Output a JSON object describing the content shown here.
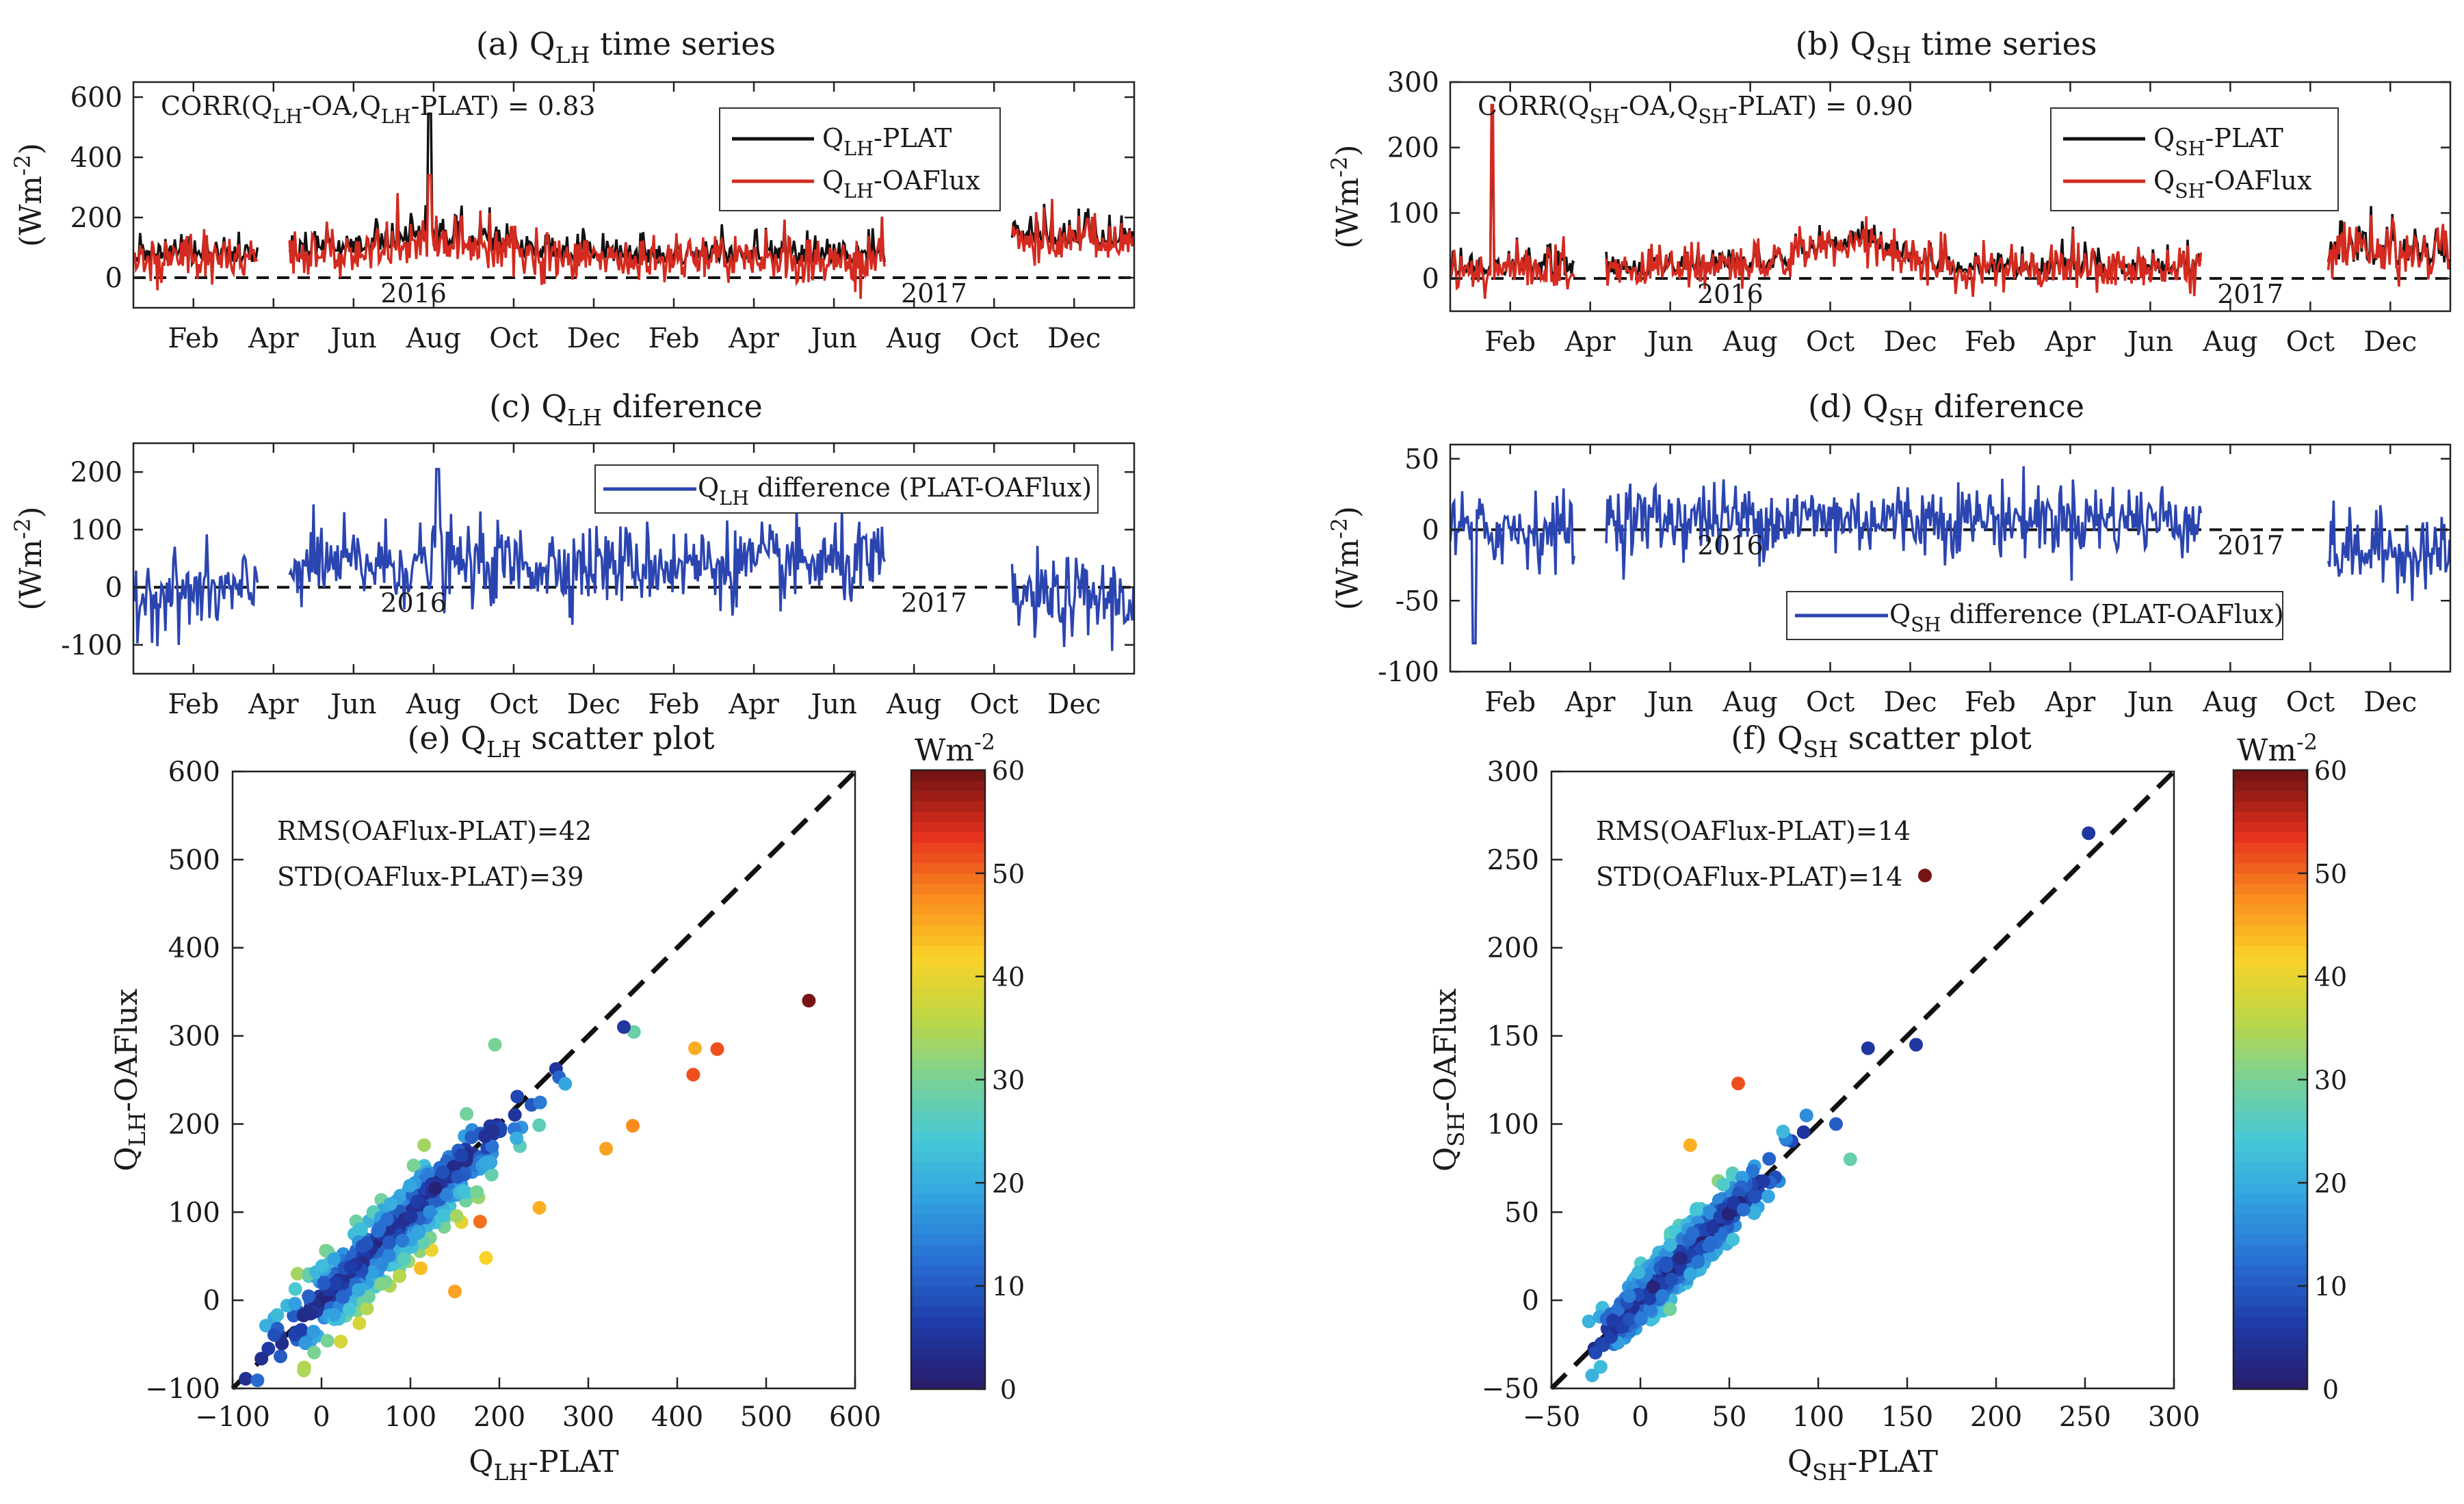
{
  "chart_data": [
    {
      "id": "a",
      "type": "line",
      "title": "(a) Q<sub>LH</sub> time series",
      "title_main": "(a) Q",
      "title_sub": "LH",
      "title_rest": " time series",
      "ylabel": "(Wm^-2)",
      "ylim": [
        -100,
        650
      ],
      "yticks": [
        0,
        200,
        400,
        600
      ],
      "xticks": [
        "Feb",
        "Apr",
        "Jun",
        "Aug",
        "Oct",
        "Dec",
        "Feb",
        "Apr",
        "Jun",
        "Aug",
        "Oct",
        "Dec"
      ],
      "year_labels": [
        "2016",
        "2017"
      ],
      "annotation": "CORR(Q_LH-OA,Q_LH-PLAT) = 0.83",
      "series": [
        {
          "name": "Q_LH-PLAT",
          "color": "#111111"
        },
        {
          "name": "Q_LH-OAFlux",
          "color": "#d42a1f"
        }
      ]
    },
    {
      "id": "b",
      "type": "line",
      "title_main": "(b) Q",
      "title_sub": "SH",
      "title_rest": " time series",
      "ylabel": "(Wm^-2)",
      "ylim": [
        -50,
        300
      ],
      "yticks": [
        0,
        100,
        200,
        300
      ],
      "xticks": [
        "Feb",
        "Apr",
        "Jun",
        "Aug",
        "Oct",
        "Dec",
        "Feb",
        "Apr",
        "Jun",
        "Aug",
        "Oct",
        "Dec"
      ],
      "year_labels": [
        "2016",
        "2017"
      ],
      "annotation": "CORR(Q_SH-OA,Q_SH-PLAT) = 0.90",
      "series": [
        {
          "name": "Q_SH-PLAT",
          "color": "#111111"
        },
        {
          "name": "Q_SH-OAFlux",
          "color": "#d42a1f"
        }
      ]
    },
    {
      "id": "c",
      "type": "line",
      "title_main": "(c) Q",
      "title_sub": "LH",
      "title_rest": " diference",
      "ylabel": "(Wm^-2)",
      "ylim": [
        -150,
        250
      ],
      "yticks": [
        -100,
        0,
        100,
        200
      ],
      "xticks": [
        "Feb",
        "Apr",
        "Jun",
        "Aug",
        "Oct",
        "Dec",
        "Feb",
        "Apr",
        "Jun",
        "Aug",
        "Oct",
        "Dec"
      ],
      "year_labels": [
        "2016",
        "2017"
      ],
      "series": [
        {
          "name": "Q_LH difference (PLAT-OAFlux)",
          "color": "#2b45b0"
        }
      ]
    },
    {
      "id": "d",
      "type": "line",
      "title_main": "(d) Q",
      "title_sub": "SH",
      "title_rest": " diference",
      "ylabel": "(Wm^-2)",
      "ylim": [
        -100,
        60
      ],
      "yticks": [
        -100,
        -50,
        0,
        50
      ],
      "xticks": [
        "Feb",
        "Apr",
        "Jun",
        "Aug",
        "Oct",
        "Dec",
        "Feb",
        "Apr",
        "Jun",
        "Aug",
        "Oct",
        "Dec"
      ],
      "year_labels": [
        "2016",
        "2017"
      ],
      "series": [
        {
          "name": "Q_SH difference (PLAT-OAFlux)",
          "color": "#2b45b0"
        }
      ]
    },
    {
      "id": "e",
      "type": "scatter",
      "title_main": "(e) Q",
      "title_sub": "LH",
      "title_rest": " scatter plot",
      "xlabel": "Q_LH-PLAT",
      "ylabel": "Q_LH-OAFlux",
      "xlim": [
        -100,
        600
      ],
      "ylim": [
        -100,
        600
      ],
      "xticks": [
        -100,
        0,
        100,
        200,
        300,
        400,
        500,
        600
      ],
      "yticks": [
        -100,
        0,
        100,
        200,
        300,
        400,
        500,
        600
      ],
      "stats": [
        "RMS(OAFlux-PLAT)=42",
        "STD(OAFlux-PLAT)=39"
      ],
      "colorbar": {
        "label": "Wm^-2",
        "min": 0,
        "max": 60,
        "ticks": [
          0,
          10,
          20,
          30,
          40,
          50,
          60
        ]
      },
      "highlight_points": [
        {
          "x": 548,
          "y": 340,
          "c": 60
        },
        {
          "x": 445,
          "y": 285,
          "c": 52
        },
        {
          "x": 420,
          "y": 286,
          "c": 45
        },
        {
          "x": 418,
          "y": 256,
          "c": 52
        },
        {
          "x": 350,
          "y": 198,
          "c": 48
        },
        {
          "x": 340,
          "y": 310,
          "c": 5
        },
        {
          "x": 320,
          "y": 172,
          "c": 46
        },
        {
          "x": 245,
          "y": 105,
          "c": 45
        },
        {
          "x": 150,
          "y": 10,
          "c": 46
        },
        {
          "x": 185,
          "y": 48,
          "c": 42
        },
        {
          "x": 195,
          "y": 290,
          "c": 30
        }
      ]
    },
    {
      "id": "f",
      "type": "scatter",
      "title_main": "(f) Q",
      "title_sub": "SH",
      "title_rest": " scatter plot",
      "xlabel": "Q_SH-PLAT",
      "ylabel": "Q_SH-OAFlux",
      "xlim": [
        -50,
        300
      ],
      "ylim": [
        -50,
        300
      ],
      "xticks": [
        -50,
        0,
        50,
        100,
        150,
        200,
        250,
        300
      ],
      "yticks": [
        -50,
        0,
        50,
        100,
        150,
        200,
        250,
        300
      ],
      "stats": [
        "RMS(OAFlux-PLAT)=14",
        "STD(OAFlux-PLAT)=14"
      ],
      "colorbar": {
        "label": "Wm^-2",
        "min": 0,
        "max": 60,
        "ticks": [
          0,
          10,
          20,
          30,
          40,
          50,
          60
        ]
      },
      "highlight_points": [
        {
          "x": 252,
          "y": 265,
          "c": 5
        },
        {
          "x": 160,
          "y": 241,
          "c": 60
        },
        {
          "x": 155,
          "y": 145,
          "c": 5
        },
        {
          "x": 128,
          "y": 143,
          "c": 5
        },
        {
          "x": 55,
          "y": 123,
          "c": 52
        },
        {
          "x": 28,
          "y": 88,
          "c": 45
        },
        {
          "x": 118,
          "y": 80,
          "c": 28
        },
        {
          "x": 110,
          "y": 100,
          "c": 10
        }
      ]
    }
  ]
}
